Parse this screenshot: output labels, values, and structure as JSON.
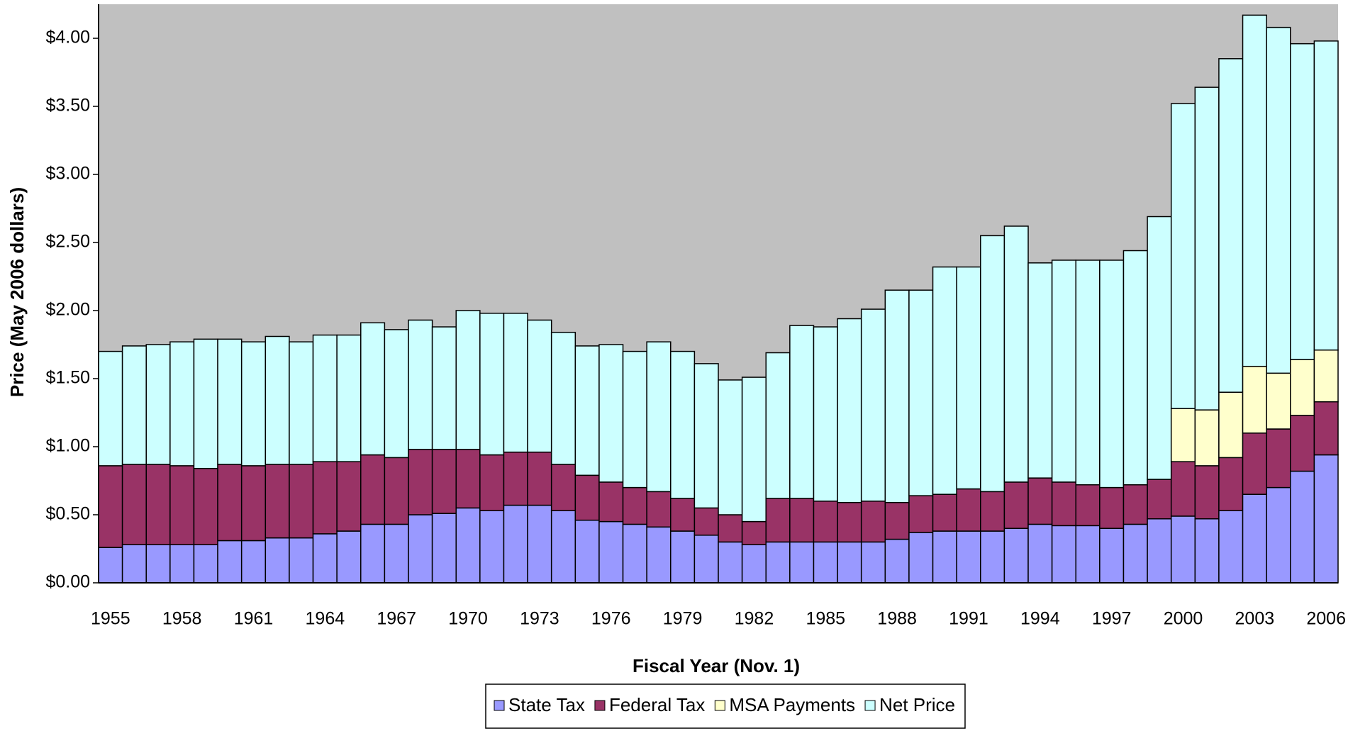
{
  "chart_data": {
    "type": "stacked_bar",
    "xlabel": "Fiscal Year (Nov. 1)",
    "ylabel": "Price (May 2006 dollars)",
    "categories": [
      "1955",
      null,
      null,
      "1958",
      null,
      null,
      "1961",
      null,
      null,
      "1964",
      null,
      null,
      "1967",
      null,
      null,
      "1970",
      null,
      null,
      "1973",
      null,
      null,
      "1976",
      null,
      null,
      "1979",
      null,
      null,
      "1982",
      null,
      null,
      "1985",
      null,
      null,
      "1988",
      null,
      null,
      "1991",
      null,
      null,
      "1994",
      null,
      null,
      "1997",
      null,
      null,
      "2000",
      null,
      null,
      "2003",
      null,
      null,
      "2006"
    ],
    "series": [
      {
        "name": "State Tax",
        "color": "#9999ff",
        "values": [
          0.26,
          0.28,
          0.28,
          0.28,
          0.28,
          0.31,
          0.31,
          0.33,
          0.33,
          0.36,
          0.38,
          0.43,
          0.43,
          0.5,
          0.51,
          0.55,
          0.53,
          0.57,
          0.57,
          0.53,
          0.46,
          0.45,
          0.43,
          0.41,
          0.38,
          0.35,
          0.3,
          0.28,
          0.3,
          0.3,
          0.3,
          0.3,
          0.3,
          0.32,
          0.37,
          0.38,
          0.38,
          0.38,
          0.4,
          0.43,
          0.42,
          0.42,
          0.4,
          0.43,
          0.47,
          0.49,
          0.47,
          0.53,
          0.65,
          0.7,
          0.82,
          0.94
        ]
      },
      {
        "name": "Federal Tax",
        "color": "#993366",
        "values": [
          0.6,
          0.59,
          0.59,
          0.58,
          0.56,
          0.56,
          0.55,
          0.54,
          0.54,
          0.53,
          0.51,
          0.51,
          0.49,
          0.48,
          0.47,
          0.43,
          0.41,
          0.39,
          0.39,
          0.34,
          0.33,
          0.29,
          0.27,
          0.26,
          0.24,
          0.2,
          0.2,
          0.17,
          0.32,
          0.32,
          0.3,
          0.29,
          0.3,
          0.27,
          0.27,
          0.27,
          0.31,
          0.29,
          0.34,
          0.34,
          0.32,
          0.3,
          0.3,
          0.29,
          0.29,
          0.4,
          0.39,
          0.39,
          0.45,
          0.43,
          0.41,
          0.39
        ]
      },
      {
        "name": "MSA Payments",
        "color": "#ffffcc",
        "values": [
          null,
          null,
          null,
          null,
          null,
          null,
          null,
          null,
          null,
          null,
          null,
          null,
          null,
          null,
          null,
          null,
          null,
          null,
          null,
          null,
          null,
          null,
          null,
          null,
          null,
          null,
          null,
          null,
          null,
          null,
          null,
          null,
          null,
          null,
          null,
          null,
          null,
          null,
          null,
          null,
          null,
          null,
          null,
          null,
          null,
          0.39,
          0.41,
          0.48,
          0.49,
          0.41,
          0.41,
          0.38
        ]
      },
      {
        "name": "Net Price",
        "color": "#ccffff",
        "values": [
          0.84,
          0.87,
          0.88,
          0.91,
          0.95,
          0.92,
          0.91,
          0.94,
          0.9,
          0.93,
          0.93,
          0.97,
          0.94,
          0.95,
          0.9,
          1.02,
          1.04,
          1.02,
          0.97,
          0.97,
          0.95,
          1.01,
          1.0,
          1.1,
          1.08,
          1.06,
          0.99,
          1.06,
          1.07,
          1.27,
          1.28,
          1.35,
          1.41,
          1.56,
          1.51,
          1.67,
          1.63,
          1.88,
          1.88,
          1.58,
          1.63,
          1.65,
          1.67,
          1.72,
          1.93,
          2.24,
          2.37,
          2.45,
          2.58,
          2.54,
          2.32,
          2.27
        ]
      }
    ],
    "ylim": [
      0,
      4.25
    ],
    "yticks": [
      {
        "value": 0,
        "label": "$0.00"
      },
      {
        "value": 0.5,
        "label": "$0.50"
      },
      {
        "value": 1,
        "label": "$1.00"
      },
      {
        "value": 1.5,
        "label": "$1.50"
      },
      {
        "value": 2,
        "label": "$2.00"
      },
      {
        "value": 2.5,
        "label": "$2.50"
      },
      {
        "value": 3,
        "label": "$3.00"
      },
      {
        "value": 3.5,
        "label": "$3.50"
      },
      {
        "value": 4,
        "label": "$4.00"
      }
    ],
    "plot_background": "#c0c0c0"
  }
}
